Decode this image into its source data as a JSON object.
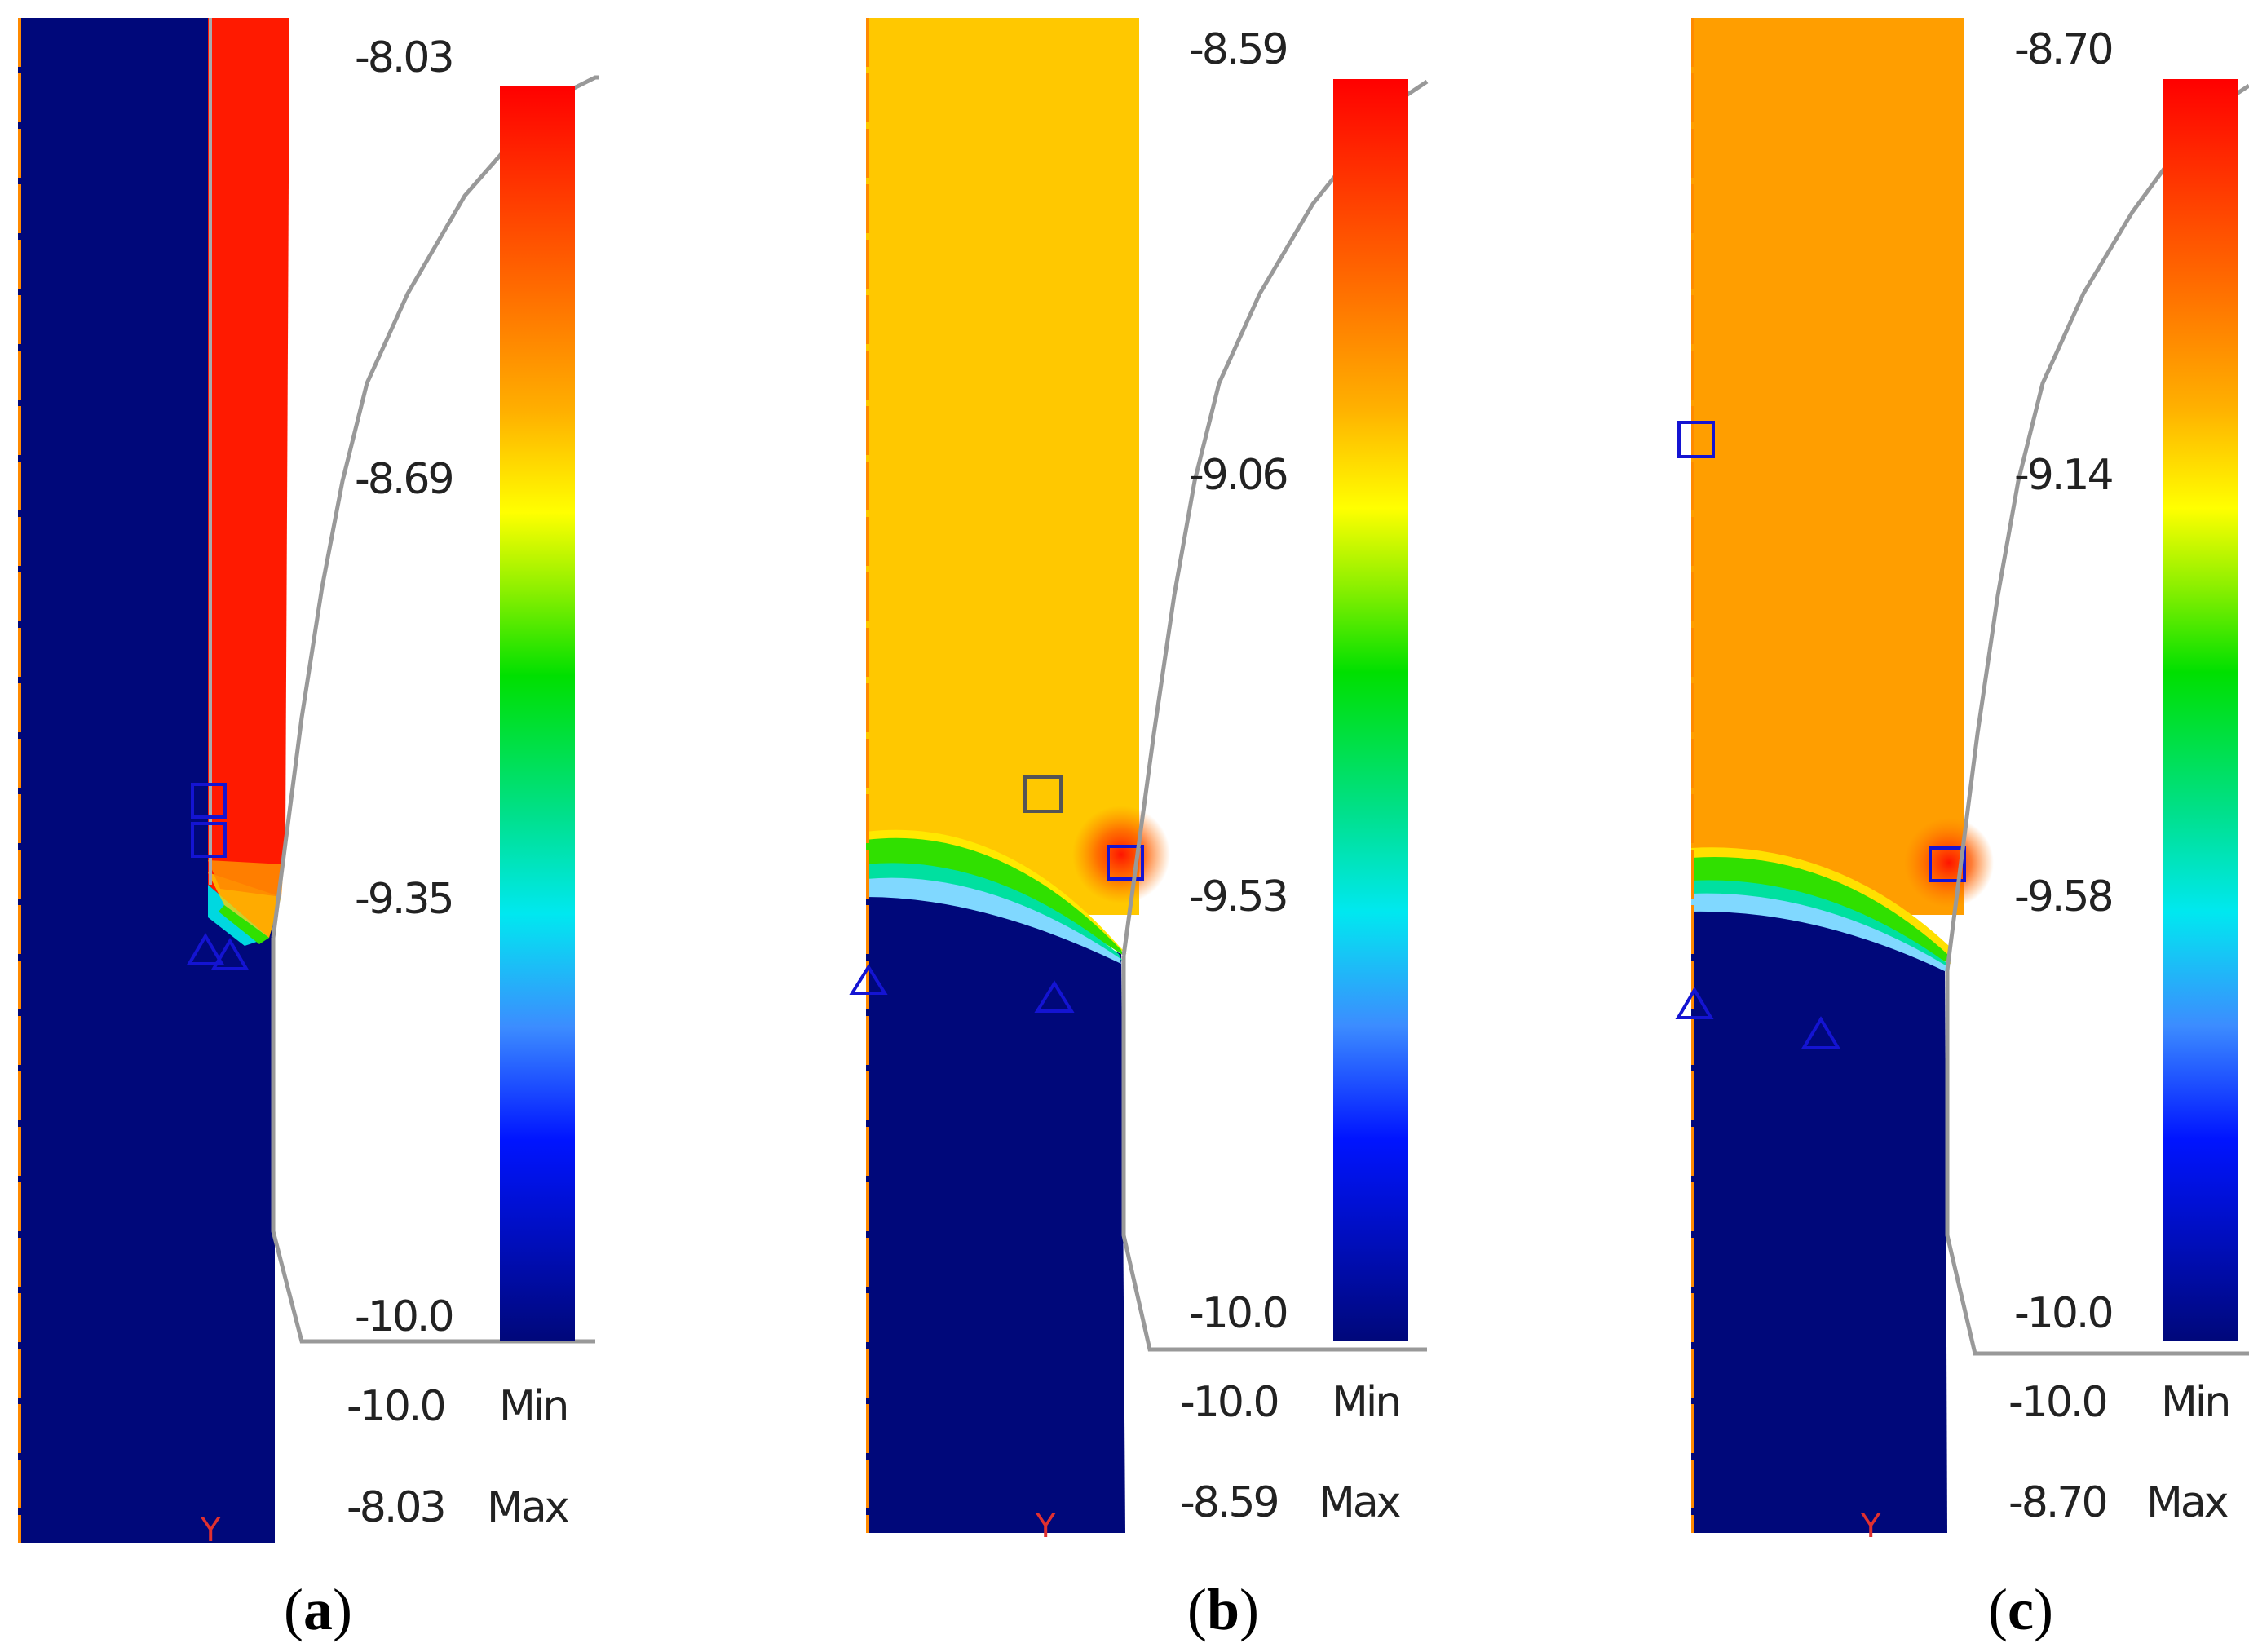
{
  "panels": [
    {
      "id": "a",
      "caption": {
        "open": "(",
        "letter": "a",
        "close": ")"
      },
      "scale_ticks": [
        "-8.03",
        "-8.69",
        "-9.35",
        "-10.0"
      ],
      "min": {
        "value": "-10.0",
        "label": "Min"
      },
      "max": {
        "value": "-8.03",
        "label": "Max"
      },
      "axis_label": "Y"
    },
    {
      "id": "b",
      "caption": {
        "open": "(",
        "letter": "b",
        "close": ")"
      },
      "scale_ticks": [
        "-8.59",
        "-9.06",
        "-9.53",
        "-10.0"
      ],
      "min": {
        "value": "-10.0",
        "label": "Min"
      },
      "max": {
        "value": "-8.59",
        "label": "Max"
      },
      "axis_label": "Y"
    },
    {
      "id": "c",
      "caption": {
        "open": "(",
        "letter": "c",
        "close": ")"
      },
      "scale_ticks": [
        "-8.70",
        "-9.14",
        "-9.58",
        "-10.0"
      ],
      "min": {
        "value": "-10.0",
        "label": "Min"
      },
      "max": {
        "value": "-8.70",
        "label": "Max"
      },
      "axis_label": "Y"
    }
  ],
  "colors": {
    "field_low": "#00087a",
    "field_a": "#ff1a00",
    "field_b": "#ffc800",
    "field_c": "#ff9e00",
    "marker": "#1414d2",
    "profile_line": "#999999",
    "edge_orange": "#ff8a00"
  }
}
